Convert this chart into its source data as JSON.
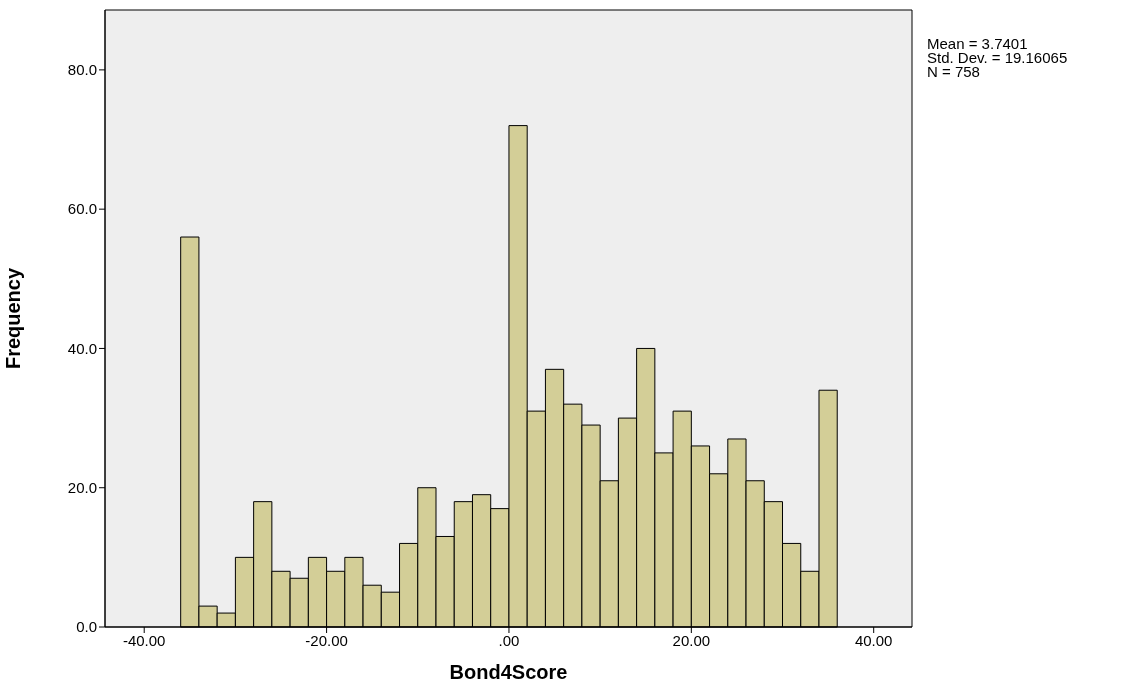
{
  "chart_data": {
    "type": "histogram",
    "xlabel": "Bond4Score",
    "ylabel": "Frequency",
    "bins": [
      -36,
      -34,
      -32,
      -30,
      -28,
      -26,
      -24,
      -22,
      -20,
      -18,
      -16,
      -14,
      -12,
      -10,
      -8,
      -6,
      -4,
      -2,
      0,
      2,
      4,
      6,
      8,
      10,
      12,
      14,
      16,
      18,
      20,
      22,
      24,
      26,
      28,
      30,
      32,
      34,
      36
    ],
    "values": [
      56,
      3,
      2,
      10,
      18,
      8,
      7,
      10,
      8,
      10,
      6,
      5,
      12,
      20,
      13,
      18,
      19,
      17,
      72,
      31,
      37,
      32,
      29,
      21,
      30,
      40,
      25,
      31,
      26,
      22,
      27,
      21,
      18,
      12,
      8,
      34
    ],
    "color": "#d3ce97",
    "xlim": [
      -44.3,
      44.2
    ],
    "xticks": [
      {
        "value": -40,
        "label": "-40.00"
      },
      {
        "value": -20,
        "label": "-20.00"
      },
      {
        "value": 0,
        "label": ".00"
      },
      {
        "value": 20,
        "label": "20.00"
      },
      {
        "value": 40,
        "label": "40.00"
      }
    ],
    "ylim": [
      0,
      88.6
    ],
    "yticks": [
      {
        "value": 0,
        "label": "0.0"
      },
      {
        "value": 20,
        "label": "20.0"
      },
      {
        "value": 40,
        "label": "40.0"
      },
      {
        "value": 60,
        "label": "60.0"
      },
      {
        "value": 80,
        "label": "80.0"
      }
    ],
    "grid": false,
    "annotations": [
      "Mean = 3.7401",
      "Std. Dev. = 19.16065",
      "N = 758"
    ]
  }
}
